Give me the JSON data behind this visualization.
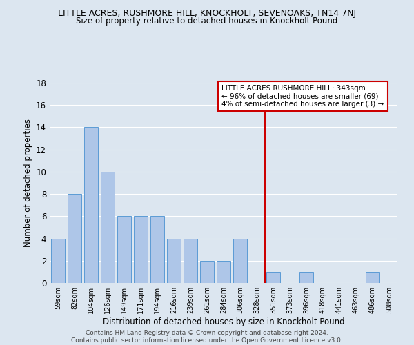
{
  "title": "LITTLE ACRES, RUSHMORE HILL, KNOCKHOLT, SEVENOAKS, TN14 7NJ",
  "subtitle": "Size of property relative to detached houses in Knockholt Pound",
  "xlabel": "Distribution of detached houses by size in Knockholt Pound",
  "ylabel": "Number of detached properties",
  "categories": [
    "59sqm",
    "82sqm",
    "104sqm",
    "126sqm",
    "149sqm",
    "171sqm",
    "194sqm",
    "216sqm",
    "239sqm",
    "261sqm",
    "284sqm",
    "306sqm",
    "328sqm",
    "351sqm",
    "373sqm",
    "396sqm",
    "418sqm",
    "441sqm",
    "463sqm",
    "486sqm",
    "508sqm"
  ],
  "values": [
    4,
    8,
    14,
    10,
    6,
    6,
    6,
    4,
    4,
    2,
    2,
    4,
    0,
    1,
    0,
    1,
    0,
    0,
    0,
    1,
    0
  ],
  "bar_color": "#aec6e8",
  "bar_edge_color": "#5b9bd5",
  "background_color": "#dce6f0",
  "grid_color": "#ffffff",
  "ylim": [
    0,
    18
  ],
  "yticks": [
    0,
    2,
    4,
    6,
    8,
    10,
    12,
    14,
    16,
    18
  ],
  "vline_x": 12.5,
  "vline_color": "#cc0000",
  "annotation_line1": "LITTLE ACRES RUSHMORE HILL: 343sqm",
  "annotation_line2": "← 96% of detached houses are smaller (69)",
  "annotation_line3": "4% of semi-detached houses are larger (3) →",
  "footer": "Contains HM Land Registry data © Crown copyright and database right 2024.\nContains public sector information licensed under the Open Government Licence v3.0."
}
